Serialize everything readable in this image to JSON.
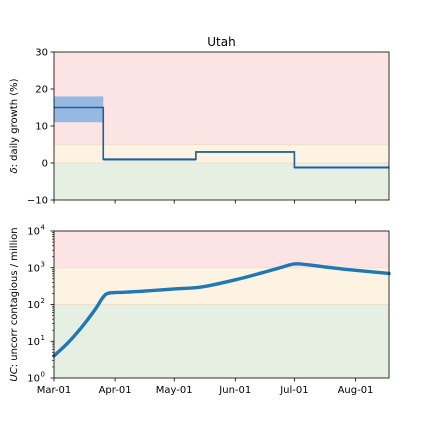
{
  "chart_data": [
    {
      "type": "line",
      "panel": "top",
      "title": "Utah",
      "ylabel_symbol": "δ",
      "ylabel_rest": ": daily growth (%)",
      "xlim": [
        "2020-03-01",
        "2020-08-18"
      ],
      "ylim": [
        -10,
        30
      ],
      "yticks": [
        -10,
        0,
        10,
        20,
        30
      ],
      "ytick_labels": [
        "−10",
        "0",
        "10",
        "20",
        "30"
      ],
      "grid": false,
      "zones": [
        {
          "name": "green",
          "from": -10,
          "to": 0,
          "color": "#e6f0e2"
        },
        {
          "name": "yellow",
          "from": 0,
          "to": 5,
          "color": "#fcf3e2"
        },
        {
          "name": "red",
          "from": 5,
          "to": 30,
          "color": "#fde4e4"
        }
      ],
      "band": {
        "color": "#97b8e0",
        "segments": [
          {
            "x_start": "2020-03-01",
            "x_end": "2020-03-26",
            "low": 11,
            "high": 18
          },
          {
            "x_start": "2020-03-26",
            "x_end": "2020-05-12",
            "low": 0.5,
            "high": 1.3
          },
          {
            "x_start": "2020-05-12",
            "x_end": "2020-07-01",
            "low": 2.7,
            "high": 3.2
          },
          {
            "x_start": "2020-07-01",
            "x_end": "2020-08-18",
            "low": -1.6,
            "high": -0.9
          }
        ]
      },
      "series": [
        {
          "color": "#1f5f96",
          "steps": [
            {
              "x_start": "2020-03-01",
              "x_end": "2020-03-26",
              "value": 15
            },
            {
              "x_start": "2020-03-26",
              "x_end": "2020-05-12",
              "value": 1
            },
            {
              "x_start": "2020-05-12",
              "x_end": "2020-07-01",
              "value": 3
            },
            {
              "x_start": "2020-07-01",
              "x_end": "2020-08-18",
              "value": -1.2
            }
          ]
        }
      ]
    },
    {
      "type": "line",
      "panel": "bottom",
      "ylabel_symbol": "UC",
      "ylabel_rest": ": uncorr contagious / million",
      "yscale": "log",
      "xlim": [
        "2020-03-01",
        "2020-08-18"
      ],
      "ylim": [
        1,
        10000
      ],
      "yticks": [
        1,
        10,
        100,
        1000,
        10000
      ],
      "ytick_exponents": [
        "0",
        "1",
        "2",
        "3",
        "4"
      ],
      "xticks": [
        "2020-03-01",
        "2020-04-01",
        "2020-05-01",
        "2020-06-01",
        "2020-07-01",
        "2020-08-01"
      ],
      "xtick_labels": [
        "Mar-01",
        "Apr-01",
        "May-01",
        "Jun-01",
        "Jul-01",
        "Aug-01"
      ],
      "grid": false,
      "zones": [
        {
          "name": "green",
          "from": 1,
          "to": 100,
          "color": "#e6f0e2"
        },
        {
          "name": "yellow",
          "from": 100,
          "to": 1000,
          "color": "#fcf3e2"
        },
        {
          "name": "red",
          "from": 1000,
          "to": 10000,
          "color": "#fde4e4"
        }
      ],
      "series": [
        {
          "color": "#1f77b4",
          "x": [
            "2020-03-01",
            "2020-03-08",
            "2020-03-15",
            "2020-03-22",
            "2020-03-26",
            "2020-03-29",
            "2020-04-05",
            "2020-04-15",
            "2020-05-01",
            "2020-05-15",
            "2020-06-01",
            "2020-06-15",
            "2020-06-25",
            "2020-07-01",
            "2020-07-08",
            "2020-07-20",
            "2020-08-01",
            "2020-08-18"
          ],
          "values": [
            4,
            9,
            24,
            75,
            160,
            205,
            215,
            230,
            265,
            300,
            470,
            740,
            1050,
            1270,
            1200,
            1000,
            850,
            700
          ]
        }
      ]
    }
  ]
}
